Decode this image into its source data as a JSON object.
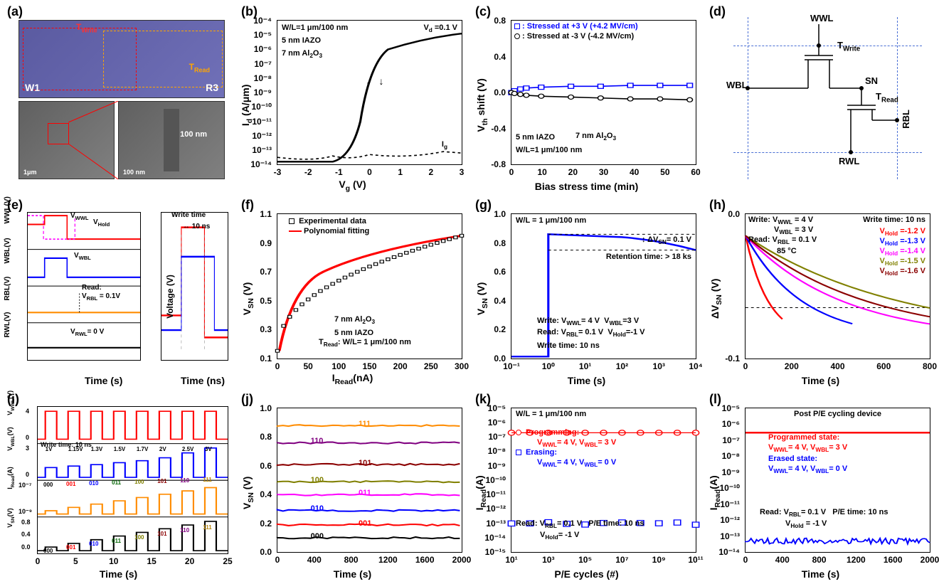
{
  "panels": {
    "a": {
      "label": "(a)"
    },
    "b": {
      "label": "(b)"
    },
    "c": {
      "label": "(c)"
    },
    "d": {
      "label": "(d)"
    },
    "e": {
      "label": "(e)"
    },
    "f": {
      "label": "(f)"
    },
    "g": {
      "label": "(g)"
    },
    "h": {
      "label": "(h)"
    },
    "i": {
      "label": "(i)"
    },
    "j": {
      "label": "(j)"
    },
    "k": {
      "label": "(k)"
    },
    "l": {
      "label": "(l)"
    }
  },
  "a": {
    "top_labels": {
      "twrite": "T_Write",
      "tread": "T_Read"
    },
    "marks": {
      "w1": "W1",
      "r3": "R3",
      "dim": "100 nm",
      "scale1": "1μm",
      "scale2": "100 nm"
    }
  },
  "b": {
    "xlabel": "V_g (V)",
    "ylabel": "I_d (A/μm)",
    "annotations": {
      "wl": "W/L=1 μm/100 nm",
      "iazo": "5 nm IAZO",
      "al2o3": "7 nm Al₂O₃",
      "vd": "V_d =0.1 V",
      "ig": "I_g"
    },
    "xticks": [
      "-3",
      "-2",
      "-1",
      "0",
      "1",
      "2",
      "3"
    ],
    "yticks": [
      "10⁻¹⁴",
      "10⁻¹³",
      "10⁻¹²",
      "10⁻¹¹",
      "10⁻¹⁰",
      "10⁻⁹",
      "10⁻⁸",
      "10⁻⁷",
      "10⁻⁶",
      "10⁻⁵",
      "10⁻⁴"
    ],
    "xlim": [
      -3,
      3
    ],
    "ylim_log": [
      -14,
      -4
    ],
    "curve_color": "#000000",
    "ig_color": "#000000"
  },
  "c": {
    "xlabel": "Bias stress time (min)",
    "ylabel": "V_th shift (V)",
    "legend": {
      "pos": "Stressed at +3 V (+4.2 MV/cm)",
      "neg": "Stressed at -3 V (-4.2 MV/cm)"
    },
    "annotations": {
      "iazo": "5 nm IAZO",
      "al2o3": "7 nm Al₂O₃",
      "wl": "W/L=1 μm/100 nm"
    },
    "xticks": [
      "0",
      "10",
      "20",
      "30",
      "40",
      "50",
      "60"
    ],
    "yticks": [
      "-0.8",
      "-0.4",
      "0.0",
      "0.4",
      "0.8"
    ],
    "xlim": [
      0,
      62
    ],
    "ylim": [
      -0.8,
      0.8
    ],
    "pos_data": {
      "x": [
        0,
        1,
        3,
        5,
        10,
        20,
        30,
        40,
        50,
        60
      ],
      "y": [
        0,
        0.02,
        0.04,
        0.05,
        0.06,
        0.07,
        0.07,
        0.08,
        0.08,
        0.08
      ]
    },
    "neg_data": {
      "x": [
        0,
        1,
        3,
        5,
        10,
        20,
        30,
        40,
        50,
        60
      ],
      "y": [
        0,
        -0.01,
        -0.02,
        -0.03,
        -0.04,
        -0.05,
        -0.06,
        -0.07,
        -0.07,
        -0.08
      ]
    },
    "pos_color": "#0000ff",
    "neg_color": "#000000"
  },
  "d": {
    "labels": {
      "wwl": "WWL",
      "wbl": "WBL",
      "rwl": "RWL",
      "rbl": "RBL",
      "sn": "SN",
      "twrite": "T_Write",
      "tread": "T_Read"
    }
  },
  "e": {
    "xlabel_left": "Time (s)",
    "xlabel_right": "Time (ns)",
    "ylabels": [
      "RWL(V)",
      "RBL(V)",
      "WBL(V)",
      "WWL(V)"
    ],
    "ylabel_right": "Voltage (V)",
    "annotations": {
      "vwwl": "V_WWL",
      "vhold": "V_Hold",
      "vwbl": "V_WBL",
      "read": "Read:",
      "vrbl": "V_RBL = 0.1V",
      "vrwl": "V_RWL = 0 V",
      "write_time": "Write time",
      "ten_ns": "10 ns"
    },
    "colors": {
      "wwl": "#ff0000",
      "wbl": "#0000ff",
      "rbl": "#ff8c00",
      "rwl": "#000000",
      "hold_dash": "#ff00ff"
    }
  },
  "f": {
    "xlabel": "I_Read (nA)",
    "ylabel": "V_SN (V)",
    "legend": {
      "exp": "Experimental data",
      "fit": "Polynomial fitting"
    },
    "annotations": {
      "al2o3": "7 nm Al₂O₃",
      "iazo": "5 nm IAZO",
      "tread": "T_Read: W/L= 1 μm/100 nm"
    },
    "xticks": [
      "0",
      "50",
      "100",
      "150",
      "200",
      "250",
      "300"
    ],
    "yticks": [
      "0.1",
      "0.3",
      "0.5",
      "0.7",
      "0.9",
      "1.1"
    ],
    "xlim": [
      0,
      300
    ],
    "ylim": [
      0.1,
      1.1
    ],
    "exp_color": "#000000",
    "fit_color": "#ff0000"
  },
  "g": {
    "xlabel": "Time (s)",
    "ylabel": "V_SN (V)",
    "annotations": {
      "wl": "W/L = 1 μm/100 nm",
      "dvsn": "ΔV_SN= 0.1 V",
      "ret": "Retention time: > 18 ks",
      "write": "Write: V_WWL= 4 V   V_WBL=3 V",
      "read": "Read: V_RBL= 0.1 V   V_Hold=-1 V",
      "wtime": "Write time: 10 ns"
    },
    "xticks": [
      "10⁻¹",
      "10⁰",
      "10¹",
      "10²",
      "10³",
      "10⁴"
    ],
    "yticks": [
      "0.0",
      "0.2",
      "0.4",
      "0.6",
      "0.8",
      "1.0"
    ],
    "xlim_log": [
      -1,
      4
    ],
    "ylim": [
      0,
      1
    ],
    "curve_color": "#0000ff"
  },
  "h": {
    "xlabel": "Time (s)",
    "ylabel": "ΔV_SN (V)",
    "annotations": {
      "write": "Write: V_WWL = 4 V",
      "vwbl": "V_WBL = 3 V",
      "read": "Read: V_RBL = 0.1 V",
      "wtime": "Write time: 10 ns",
      "temp": "85 °C"
    },
    "legend": {
      "h1": "V_Hold =-1.2 V",
      "h2": "V_Hold =-1.3 V",
      "h3": "V_Hold =-1.4 V",
      "h4": "V_Hold =-1.5 V",
      "h5": "V_Hold =-1.6 V"
    },
    "colors": {
      "h1": "#ff0000",
      "h2": "#0000ff",
      "h3": "#ff00ff",
      "h4": "#808000",
      "h5": "#8b0000"
    },
    "xticks": [
      "0",
      "200",
      "400",
      "600",
      "800"
    ],
    "yticks": [
      "-0.1",
      "0.0"
    ],
    "xlim": [
      0,
      900
    ],
    "ylim": [
      -0.17,
      0.03
    ]
  },
  "i": {
    "xlabel": "Time (s)",
    "ylabels": [
      "V_SN(V)",
      "I_Read(A)",
      "V_WBL(V)",
      "V_WWL(V)"
    ],
    "annotations": {
      "wtime": "Write time: 10 ns",
      "volt_levels": [
        "1V",
        "1.15V",
        "1.3V",
        "1.5V",
        "1.7V",
        "2V",
        "2.5V",
        "3V"
      ],
      "states": [
        "000",
        "001",
        "010",
        "011",
        "100",
        "101",
        "110",
        "111"
      ]
    },
    "xticks": [
      "0",
      "5",
      "10",
      "15",
      "20",
      "25"
    ],
    "xlim": [
      0,
      25
    ],
    "colors": {
      "wwl": "#ff0000",
      "wbl": "#0000ff",
      "iread": "#ff8c00",
      "vsn": "#000000"
    },
    "state_colors": [
      "#000000",
      "#ff0000",
      "#0000ff",
      "#006400",
      "#808000",
      "#8b0000",
      "#800080",
      "#b8860b"
    ]
  },
  "j": {
    "xlabel": "Time (s)",
    "ylabel": "V_SN (V)",
    "states": [
      "000",
      "001",
      "010",
      "011",
      "100",
      "101",
      "110",
      "111"
    ],
    "values": [
      0.1,
      0.19,
      0.29,
      0.4,
      0.49,
      0.61,
      0.76,
      0.88
    ],
    "colors": [
      "#000000",
      "#ff0000",
      "#0000ff",
      "#ff00ff",
      "#808000",
      "#8b0000",
      "#800080",
      "#ff8c00"
    ],
    "xticks": [
      "0",
      "400",
      "800",
      "1200",
      "1600",
      "2000"
    ],
    "yticks": [
      "0.0",
      "0.2",
      "0.4",
      "0.6",
      "0.8",
      "1.0"
    ],
    "xlim": [
      0,
      2000
    ],
    "ylim": [
      0,
      1
    ]
  },
  "k": {
    "xlabel": "P/E cycles (#)",
    "ylabel": "I_Read (A)",
    "annotations": {
      "wl": "W/L = 1 μm/100 nm",
      "prog": "Programming:",
      "prog2": "V_WWL= 4 V, V_WBL= 3 V",
      "erase": "Erasing:",
      "erase2": "V_WWL= 4 V, V_WBL= 0 V",
      "read": "Read: V_RBL= 0.1 V    P/E time: 10 ns",
      "vhold": "V_Hold= -1 V"
    },
    "xticks": [
      "10¹",
      "10³",
      "10⁵",
      "10⁷",
      "10⁹",
      "10¹¹"
    ],
    "yticks": [
      "10⁻¹⁵",
      "10⁻¹⁴",
      "10⁻¹³",
      "10⁻¹²",
      "10⁻¹¹",
      "10⁻¹⁰",
      "10⁻⁹",
      "10⁻⁸",
      "10⁻⁷",
      "10⁻⁶",
      "10⁻⁵"
    ],
    "xlim_log": [
      1,
      11
    ],
    "ylim_log": [
      -15,
      -5
    ],
    "prog_color": "#ff0000",
    "erase_color": "#0000ff",
    "prog_val": 2e-07,
    "erase_val": 1e-13
  },
  "l": {
    "xlabel": "Time (s)",
    "ylabel": "I_Read (A)",
    "annotations": {
      "title": "Post P/E cycling device",
      "prog": "Programmed state:",
      "prog2": "V_WWL= 4 V, V_WBL= 3 V",
      "erase": "Erased state:",
      "erase2": "V_WWL= 4 V, V_WBL= 0 V",
      "read": "Read: V_RBL= 0.1 V    P/E time: 10 ns",
      "vhold": "V_Hold = -1 V"
    },
    "xticks": [
      "0",
      "400",
      "800",
      "1200",
      "1600",
      "2000"
    ],
    "yticks": [
      "10⁻¹⁴",
      "10⁻¹³",
      "10⁻¹²",
      "10⁻¹¹",
      "10⁻¹⁰",
      "10⁻⁹",
      "10⁻⁸",
      "10⁻⁷",
      "10⁻⁶",
      "10⁻⁵"
    ],
    "xlim": [
      0,
      2000
    ],
    "ylim_log": [
      -14,
      -5
    ],
    "prog_color": "#ff0000",
    "erase_color": "#0000ff",
    "prog_val": 3e-07,
    "erase_val": 5e-14
  }
}
